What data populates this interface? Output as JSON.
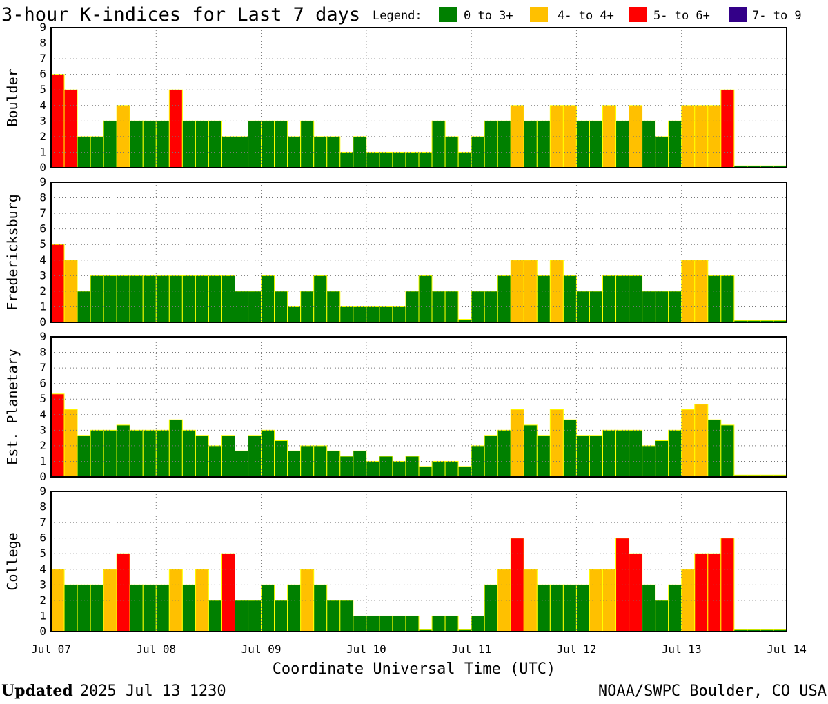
{
  "colors": {
    "quiet": "#008000",
    "active": "#ffc000",
    "storm": "#ff0000",
    "severe": "#330088",
    "edge": "#ffff00",
    "grid": "#777777"
  },
  "chart_data": {
    "type": "bar",
    "title": "3-hour K-indices for Last 7 days",
    "legend": {
      "label": "Legend:",
      "position": "top-right",
      "items": [
        {
          "text": "0 to 3+",
          "color": "#008000"
        },
        {
          "text": "4- to 4+",
          "color": "#ffc000"
        },
        {
          "text": "5- to 6+",
          "color": "#ff0000"
        },
        {
          "text": "7- to 9",
          "color": "#330088"
        }
      ]
    },
    "xlabel": "Coordinate Universal Time (UTC)",
    "x_ticks": [
      "Jul 07",
      "Jul 08",
      "Jul 09",
      "Jul 10",
      "Jul 11",
      "Jul 12",
      "Jul 13",
      "Jul 14"
    ],
    "y_ticks": [
      "0",
      "1",
      "2",
      "3",
      "4",
      "5",
      "6",
      "7",
      "8",
      "9"
    ],
    "ylim": [
      0,
      9
    ],
    "bars_per_panel": 56,
    "interval_hours": 3,
    "grid": true,
    "panels": [
      {
        "name": "Boulder",
        "values": [
          6,
          5,
          2,
          2,
          3,
          4,
          3,
          3,
          3,
          5,
          3,
          3,
          3,
          2,
          2,
          3,
          3,
          3,
          2,
          3,
          2,
          2,
          1,
          2,
          1,
          1,
          1,
          1,
          1,
          3,
          2,
          1,
          2,
          3,
          3,
          4,
          3,
          3,
          4,
          4,
          3,
          3,
          4,
          3,
          4,
          3,
          2,
          3,
          4,
          4,
          4,
          5,
          0,
          0,
          0,
          0
        ]
      },
      {
        "name": "Fredericksburg",
        "values": [
          5,
          4,
          2,
          3,
          3,
          3,
          3,
          3,
          3,
          3,
          3,
          3,
          3,
          3,
          2,
          2,
          3,
          2,
          1,
          2,
          3,
          2,
          1,
          1,
          1,
          1,
          1,
          2,
          3,
          2,
          2,
          0.2,
          2,
          2,
          3,
          4,
          4,
          3,
          4,
          3,
          2,
          2,
          3,
          3,
          3,
          2,
          2,
          2,
          4,
          4,
          3,
          3,
          0,
          0,
          0,
          0
        ]
      },
      {
        "name": "Est. Planetary",
        "values": [
          5.33,
          4.33,
          2.67,
          3,
          3,
          3.33,
          3,
          3,
          3,
          3.67,
          3,
          2.67,
          2,
          2.67,
          1.67,
          2.67,
          3,
          2.33,
          1.67,
          2,
          2,
          1.67,
          1.33,
          1.67,
          1,
          1.33,
          1,
          1.33,
          0.67,
          1,
          1,
          0.67,
          2,
          2.67,
          3,
          4.33,
          3.33,
          2.67,
          4.33,
          3.67,
          2.67,
          2.67,
          3,
          3,
          3,
          2,
          2.33,
          3,
          4.33,
          4.67,
          3.67,
          3.33,
          0,
          0,
          0,
          0
        ]
      },
      {
        "name": "College",
        "values": [
          4,
          3,
          3,
          3,
          4,
          5,
          3,
          3,
          3,
          4,
          3,
          4,
          2,
          5,
          2,
          2,
          3,
          2,
          3,
          4,
          3,
          2,
          2,
          1,
          1,
          1,
          1,
          1,
          0.1,
          1,
          1,
          0.1,
          1,
          3,
          4,
          6,
          4,
          3,
          3,
          3,
          3,
          4,
          4,
          6,
          5,
          3,
          2,
          3,
          4,
          5,
          5,
          6,
          0,
          0,
          0,
          0
        ]
      }
    ]
  },
  "footer": {
    "updated_label": "Updated",
    "updated_time": "2025 Jul 13 1230",
    "source": "NOAA/SWPC Boulder, CO USA"
  }
}
